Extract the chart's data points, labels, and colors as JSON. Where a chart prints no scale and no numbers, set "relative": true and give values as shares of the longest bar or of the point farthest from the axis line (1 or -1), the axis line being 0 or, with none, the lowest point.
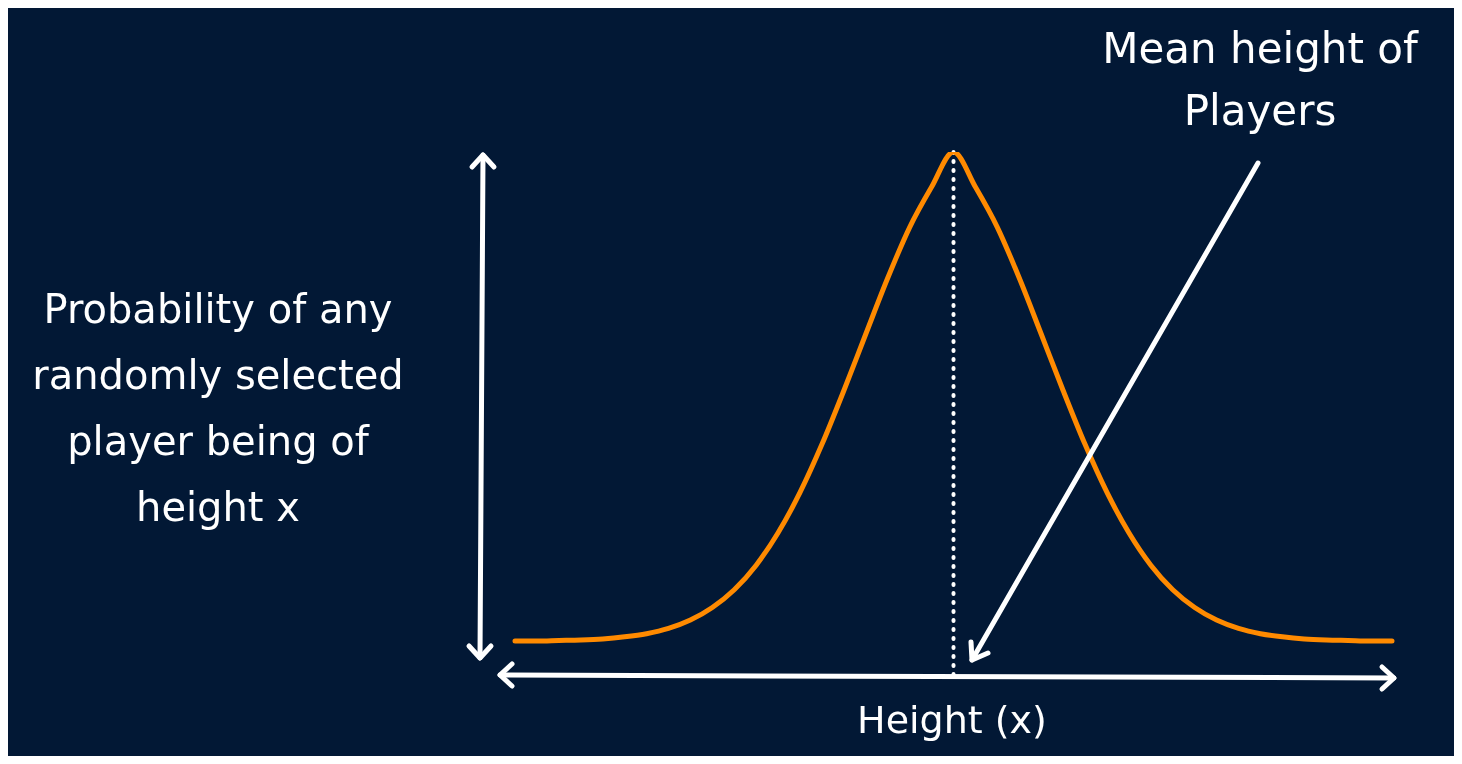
{
  "chart_data": {
    "type": "line",
    "relative": true,
    "xlabel": "Height (x)",
    "ylabel": "Probability of any randomly selected player being of height x",
    "annotations": [
      "Mean height of Players"
    ],
    "categories": [
      null,
      null,
      null,
      null,
      null,
      null,
      null,
      null,
      null,
      null,
      null,
      null,
      null,
      null,
      null,
      null,
      null,
      null,
      null,
      null,
      null,
      null,
      null,
      null,
      null,
      null,
      null,
      null,
      null,
      null,
      null,
      null,
      null,
      null,
      null,
      null,
      null,
      null,
      null,
      null,
      null
    ],
    "series": [
      {
        "color": "#ff8a00",
        "values": [
          0.065,
          0.065,
          0.066,
          0.067,
          0.069,
          0.073,
          0.079,
          0.089,
          0.105,
          0.129,
          0.163,
          0.21,
          0.272,
          0.349,
          0.441,
          0.544,
          0.652,
          0.759,
          0.856,
          0.933,
          1.0,
          0.933,
          0.856,
          0.759,
          0.652,
          0.544,
          0.441,
          0.349,
          0.272,
          0.21,
          0.163,
          0.129,
          0.105,
          0.089,
          0.079,
          0.073,
          0.069,
          0.067,
          0.066,
          0.065,
          0.065
        ]
      }
    ],
    "grid": false,
    "legend": false,
    "marker": "none",
    "line_style": "solid"
  }
}
